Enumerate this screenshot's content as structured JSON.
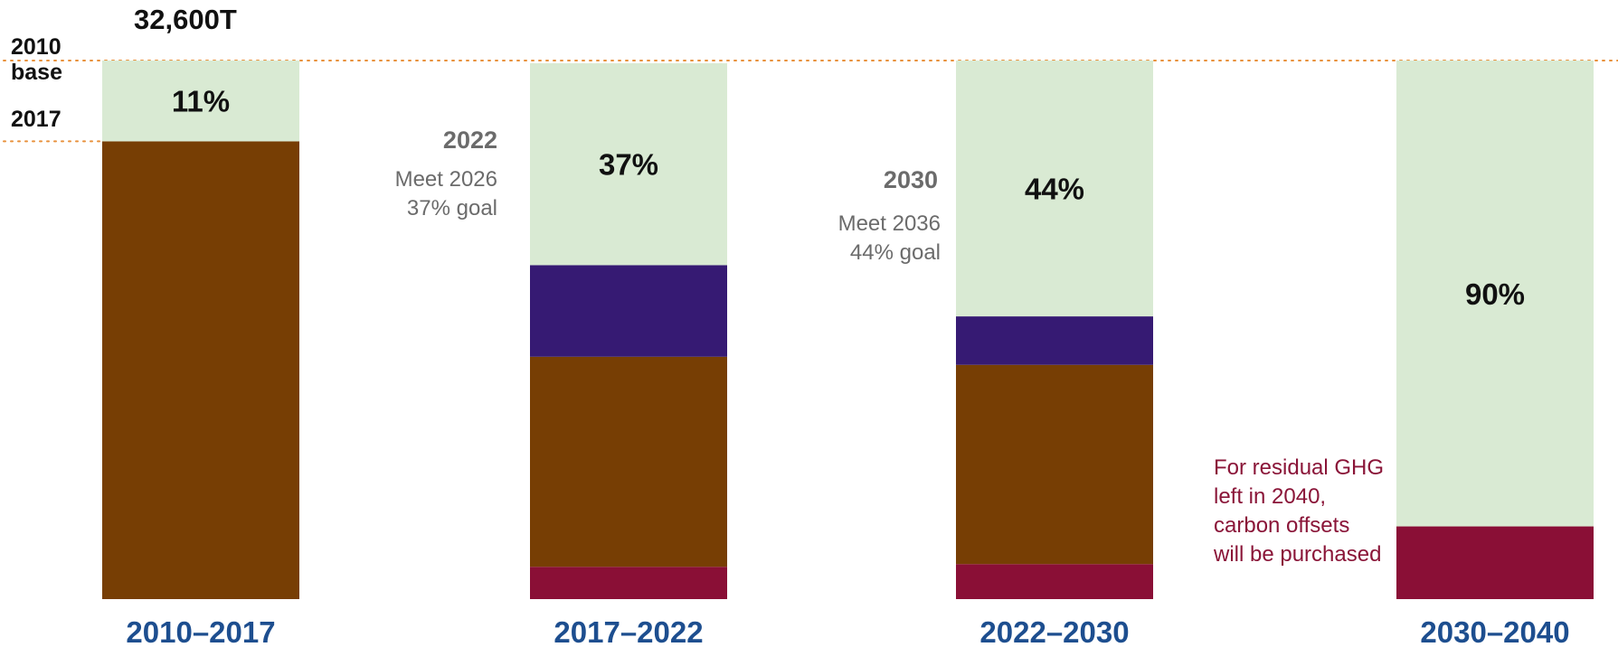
{
  "annotations": {
    "total": "32,600T",
    "base_2010_line1": "2010",
    "base_2010_line2": "base",
    "base_2017": "2017",
    "goal_2022_year": "2022",
    "goal_2022_line1": "Meet 2026",
    "goal_2022_line2": "37% goal",
    "goal_2030_year": "2030",
    "goal_2030_line1": "Meet 2036",
    "goal_2030_line2": "44% goal",
    "offset_note": "For residual GHG left in 2040, carbon offsets will be purchased"
  },
  "colors": {
    "reduction": "#d9ead3",
    "brown": "#773e04",
    "purple": "#361a73",
    "maroon": "#8a0f36",
    "category_label": "#1d4e8f",
    "reference_line": "#e8913c",
    "goal_text": "#6b6b6b"
  },
  "chart_data": {
    "type": "bar",
    "stacked": true,
    "categories": [
      "2010–2017",
      "2017–2022",
      "2022–2030",
      "2030–2040"
    ],
    "ylim": [
      0,
      100
    ],
    "series": [
      {
        "color": "#8a0f36",
        "values": [
          0,
          6,
          6.5,
          13.5
        ]
      },
      {
        "color": "#773e04",
        "values": [
          85,
          39,
          37,
          0
        ]
      },
      {
        "color": "#361a73",
        "values": [
          0,
          17,
          9,
          0
        ]
      },
      {
        "color": "#d9ead3",
        "values": [
          15,
          37.5,
          47.5,
          86.5
        ]
      }
    ],
    "data_labels": [
      "11%",
      "37%",
      "44%",
      "90%"
    ],
    "reference_lines": [
      {
        "label": "2010 base",
        "value": 100
      },
      {
        "label": "2017",
        "value": 85
      }
    ]
  }
}
